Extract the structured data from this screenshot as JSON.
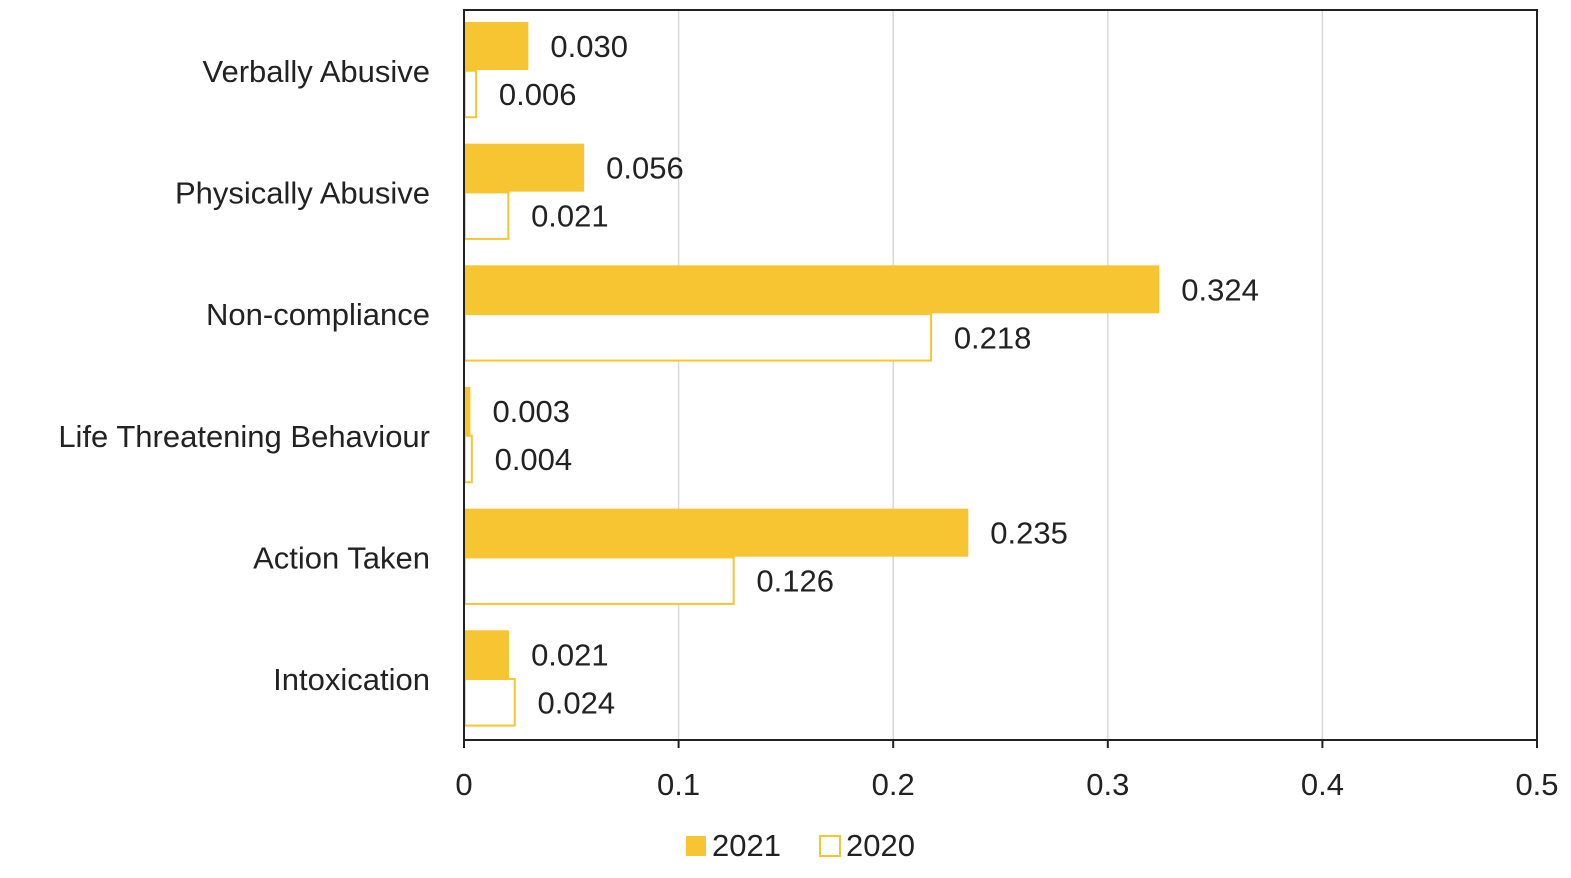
{
  "colors": {
    "bar_2021": "#F7C531",
    "bar_2020_stroke": "#F7C531",
    "bar_2020_fill": "#FFFFFF",
    "grid": "#D9D9D9",
    "axis": "#222222",
    "text": "#222222"
  },
  "chart_data": {
    "type": "bar",
    "orientation": "horizontal",
    "categories": [
      "Verbally Abusive",
      "Physically Abusive",
      "Non-compliance",
      "Life Threatening Behaviour",
      "Action Taken",
      "Intoxication"
    ],
    "series": [
      {
        "name": "2021",
        "style": "filled",
        "values": [
          0.03,
          0.056,
          0.324,
          0.003,
          0.235,
          0.021
        ],
        "labels": [
          "0.030",
          "0.056",
          "0.324",
          "0.003",
          "0.235",
          "0.021"
        ]
      },
      {
        "name": "2020",
        "style": "outline",
        "values": [
          0.006,
          0.021,
          0.218,
          0.004,
          0.126,
          0.024
        ],
        "labels": [
          "0.006",
          "0.021",
          "0.218",
          "0.004",
          "0.126",
          "0.024"
        ]
      }
    ],
    "xlim": [
      0,
      0.5
    ],
    "xticks": [
      0,
      0.1,
      0.2,
      0.3,
      0.4,
      0.5
    ],
    "xtick_labels": [
      "0",
      "0.1",
      "0.2",
      "0.3",
      "0.4",
      "0.5"
    ],
    "title": "",
    "xlabel": "",
    "ylabel": "",
    "grid": "vertical",
    "legend_position": "bottom-center"
  }
}
